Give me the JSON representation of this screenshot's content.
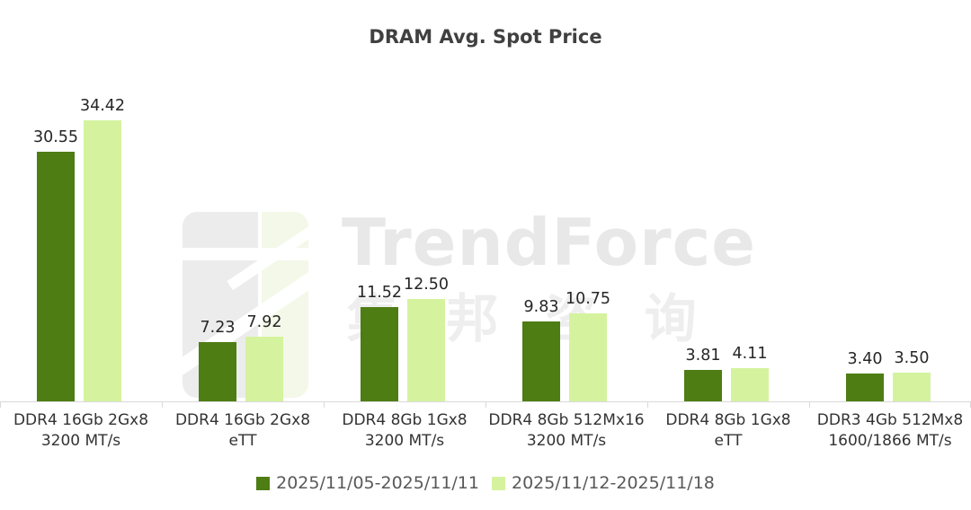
{
  "chart": {
    "title": "DRAM Avg. Spot Price",
    "watermark": {
      "brand": "TrendForce",
      "brand_cn": "集 邦 咨 询"
    }
  },
  "chart_data": {
    "type": "bar",
    "title": "DRAM Avg. Spot Price",
    "categories": [
      "DDR4 16Gb 2Gx8\n3200 MT/s",
      "DDR4 16Gb 2Gx8\neTT",
      "DDR4 8Gb 1Gx8\n3200 MT/s",
      "DDR4 8Gb 512Mx16\n3200 MT/s",
      "DDR4 8Gb 1Gx8\neTT",
      "DDR3 4Gb 512Mx8\n1600/1866 MT/s"
    ],
    "series": [
      {
        "name": "2025/11/05-2025/11/11",
        "color": "#4e7d14",
        "values": [
          30.55,
          7.23,
          11.52,
          9.83,
          3.81,
          3.4
        ]
      },
      {
        "name": "2025/11/12-2025/11/18",
        "color": "#d5f39e",
        "values": [
          34.42,
          7.92,
          12.5,
          10.75,
          4.11,
          3.5
        ]
      }
    ],
    "ylim": [
      0,
      36
    ],
    "value_labels": true,
    "value_label_decimals": 2,
    "grid": false,
    "legend_position": "bottom",
    "axis_line_color": "#d9d9d9"
  },
  "colors": {
    "series1": "#4e7d14",
    "series2": "#d5f39e",
    "title_text": "#404040",
    "value_text": "#262626",
    "category_text": "#333333",
    "legend_text": "#595959",
    "axis_line": "#d9d9d9"
  }
}
